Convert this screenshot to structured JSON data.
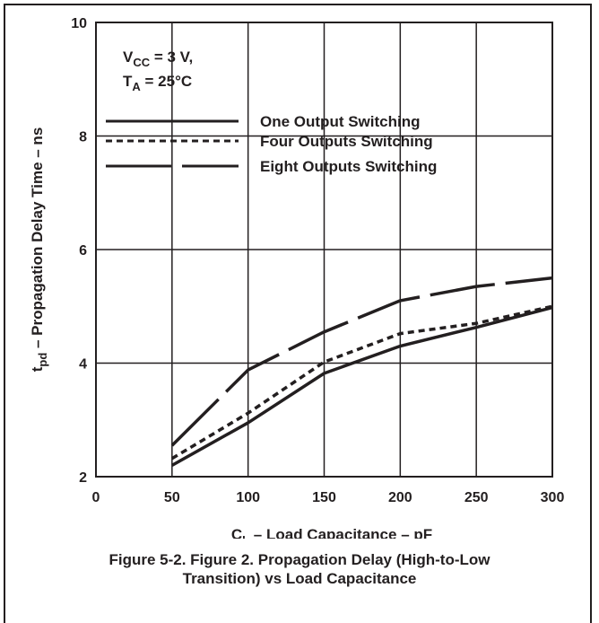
{
  "chart_data": {
    "type": "line",
    "xlabel_main": "C",
    "xlabel_sub": "L",
    "xlabel_rest": " – Load Capacitance – pF",
    "ylabel_main": "t",
    "ylabel_sub": "pd",
    "ylabel_rest": " – Propagation Delay Time – ns",
    "xlim": [
      0,
      300
    ],
    "ylim": [
      2,
      10
    ],
    "x_ticks": [
      0,
      50,
      100,
      150,
      200,
      250,
      300
    ],
    "y_ticks": [
      2,
      4,
      6,
      8,
      10
    ],
    "grid": true,
    "legend_position": "upper-left",
    "conditions": {
      "vcc_main": "V",
      "vcc_sub": "CC",
      "vcc_rest": " = 3 V,",
      "ta_main": "T",
      "ta_sub": "A",
      "ta_rest": " = 25°C"
    },
    "series": [
      {
        "name": "One Output Switching",
        "style": "solid",
        "x": [
          50,
          100,
          150,
          200,
          250,
          300
        ],
        "y": [
          2.2,
          2.95,
          3.82,
          4.3,
          4.63,
          4.98
        ]
      },
      {
        "name": "Four Outputs Switching",
        "style": "short-dash",
        "x": [
          50,
          100,
          150,
          200,
          250,
          300
        ],
        "y": [
          2.32,
          3.12,
          4.02,
          4.52,
          4.7,
          5.0
        ]
      },
      {
        "name": "Eight Outputs Switching",
        "style": "long-dash",
        "x": [
          50,
          100,
          150,
          200,
          250,
          300
        ],
        "y": [
          2.55,
          3.88,
          4.55,
          5.1,
          5.35,
          5.5
        ]
      }
    ]
  },
  "caption": {
    "line1": "Figure 5-2. Figure 2. Propagation Delay (High-to-Low",
    "line2": "Transition) vs Load Capacitance"
  },
  "colors": {
    "ink": "#231f20",
    "background": "#ffffff"
  }
}
